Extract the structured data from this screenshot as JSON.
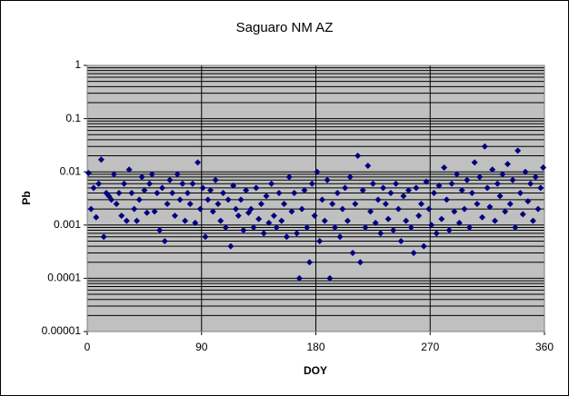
{
  "chart_data": {
    "type": "scatter",
    "title": "Saguaro NM AZ",
    "x_label": "DOY",
    "y_label": "Pb",
    "log_y": true,
    "grid": true,
    "minor_grid": true,
    "plot_background": "#c0c0c0",
    "xlim": [
      0,
      360
    ],
    "xticks": [
      0,
      90,
      180,
      270,
      360
    ],
    "ylim": [
      1e-05,
      1
    ],
    "yticks": [
      1,
      0.1,
      0.01,
      0.001,
      0.0001,
      1e-05
    ],
    "series": [
      {
        "name": "Pb",
        "color": "#000080",
        "x": [
          1,
          3,
          5,
          7,
          9,
          11,
          13,
          15,
          17,
          19,
          21,
          23,
          25,
          27,
          29,
          31,
          33,
          35,
          37,
          39,
          41,
          43,
          45,
          47,
          49,
          51,
          53,
          55,
          57,
          59,
          61,
          63,
          65,
          67,
          69,
          71,
          73,
          75,
          77,
          79,
          81,
          83,
          85,
          87,
          89,
          91,
          93,
          95,
          97,
          99,
          101,
          103,
          105,
          107,
          109,
          111,
          113,
          115,
          117,
          119,
          121,
          123,
          125,
          127,
          129,
          131,
          133,
          135,
          137,
          139,
          141,
          143,
          145,
          147,
          149,
          151,
          153,
          155,
          157,
          159,
          161,
          163,
          165,
          167,
          169,
          171,
          173,
          175,
          177,
          179,
          181,
          183,
          185,
          187,
          189,
          191,
          193,
          195,
          197,
          199,
          201,
          203,
          205,
          207,
          209,
          211,
          213,
          215,
          217,
          219,
          221,
          223,
          225,
          227,
          229,
          231,
          233,
          235,
          237,
          239,
          241,
          243,
          245,
          247,
          249,
          251,
          253,
          255,
          257,
          259,
          261,
          263,
          265,
          267,
          269,
          271,
          273,
          275,
          277,
          279,
          281,
          283,
          285,
          287,
          289,
          291,
          293,
          295,
          297,
          299,
          301,
          303,
          305,
          307,
          309,
          311,
          313,
          315,
          317,
          319,
          321,
          323,
          325,
          327,
          329,
          331,
          333,
          335,
          337,
          339,
          341,
          343,
          345,
          347,
          349,
          351,
          353,
          355,
          357,
          359
        ],
        "values": [
          0.0095,
          0.002,
          0.005,
          0.0014,
          0.006,
          0.017,
          0.0006,
          0.004,
          0.0035,
          0.003,
          0.009,
          0.0025,
          0.004,
          0.0015,
          0.006,
          0.0012,
          0.011,
          0.004,
          0.002,
          0.0012,
          0.003,
          0.008,
          0.0045,
          0.0017,
          0.006,
          0.009,
          0.0018,
          0.004,
          0.0008,
          0.005,
          0.0005,
          0.0025,
          0.007,
          0.004,
          0.0015,
          0.009,
          0.003,
          0.006,
          0.0012,
          0.004,
          0.0025,
          0.006,
          0.0011,
          0.015,
          0.002,
          0.005,
          0.0006,
          0.003,
          0.0045,
          0.0018,
          0.007,
          0.0025,
          0.0012,
          0.004,
          0.0009,
          0.003,
          0.0004,
          0.0055,
          0.002,
          0.0015,
          0.003,
          0.0008,
          0.0045,
          0.0017,
          0.002,
          0.0009,
          0.005,
          0.0013,
          0.0025,
          0.0007,
          0.0035,
          0.0011,
          0.006,
          0.0015,
          0.0009,
          0.004,
          0.0012,
          0.0025,
          0.0006,
          0.008,
          0.0018,
          0.004,
          0.0007,
          0.0001,
          0.002,
          0.0045,
          0.0009,
          0.0002,
          0.006,
          0.0015,
          0.01,
          0.0005,
          0.003,
          0.0012,
          0.007,
          0.0001,
          0.0025,
          0.0009,
          0.004,
          0.0006,
          0.002,
          0.005,
          0.0012,
          0.008,
          0.0003,
          0.0025,
          0.02,
          0.0002,
          0.0045,
          0.0009,
          0.013,
          0.0018,
          0.006,
          0.0011,
          0.003,
          0.0007,
          0.005,
          0.0025,
          0.0013,
          0.004,
          0.0008,
          0.006,
          0.002,
          0.0005,
          0.0035,
          0.0012,
          0.0045,
          0.0009,
          0.0003,
          0.005,
          0.0015,
          0.0025,
          0.0004,
          0.0065,
          0.002,
          0.001,
          0.004,
          0.0007,
          0.0055,
          0.0013,
          0.012,
          0.003,
          0.0008,
          0.006,
          0.0018,
          0.009,
          0.0011,
          0.0045,
          0.002,
          0.007,
          0.0009,
          0.004,
          0.015,
          0.0025,
          0.008,
          0.0014,
          0.03,
          0.005,
          0.0022,
          0.011,
          0.0012,
          0.006,
          0.0035,
          0.009,
          0.0018,
          0.014,
          0.0025,
          0.007,
          0.0009,
          0.025,
          0.004,
          0.0016,
          0.01,
          0.0028,
          0.006,
          0.0012,
          0.008,
          0.002,
          0.005,
          0.012
        ]
      }
    ]
  }
}
